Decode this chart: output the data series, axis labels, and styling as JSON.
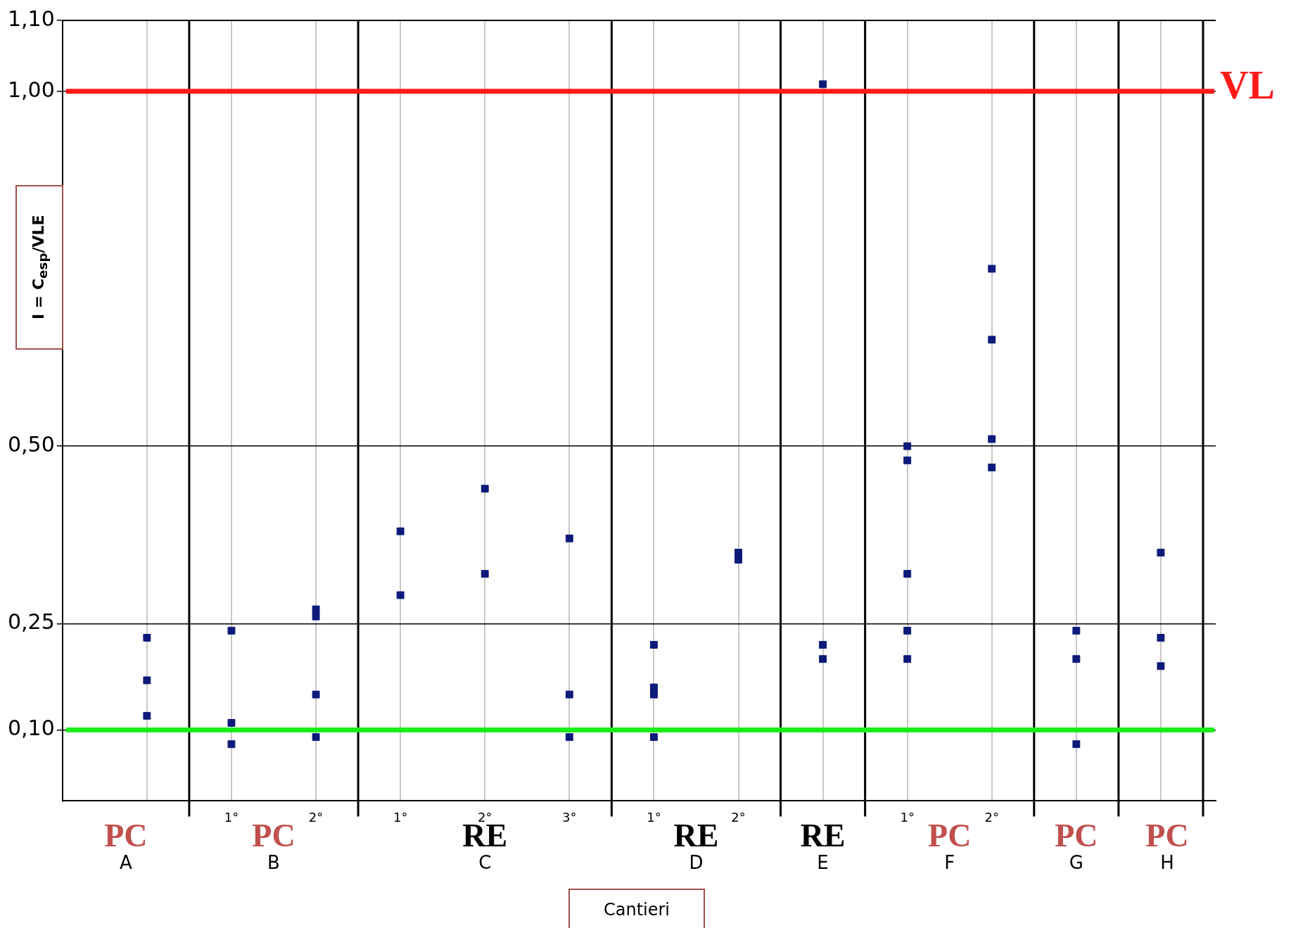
{
  "chart_data": {
    "type": "scatter",
    "xlabel": "Cantieri",
    "ylabel": "I = C$_{esp}$/VLE",
    "categories": [
      null,
      "1°",
      "2°",
      "1°",
      "2°",
      "3°",
      "1°",
      "2°",
      null,
      "1°",
      "2°",
      null,
      null
    ],
    "series": [
      {
        "color": "#0d1a7a",
        "values": [
          0.23,
          0.24,
          0.27,
          0.38,
          0.44,
          0.37,
          0.22,
          0.35,
          1.01,
          0.5,
          0.75,
          0.24,
          0.35
        ]
      },
      {
        "color": "#0d1a7a",
        "values": [
          0.17,
          0.11,
          0.26,
          0.29,
          0.32,
          0.15,
          0.16,
          0.34,
          0.22,
          0.48,
          0.65,
          0.2,
          0.23
        ]
      },
      {
        "color": "#0d1a7a",
        "values": [
          0.12,
          0.08,
          0.15,
          null,
          null,
          0.09,
          0.15,
          null,
          0.2,
          0.32,
          0.51,
          0.08,
          0.19
        ]
      },
      {
        "color": "#0d1a7a",
        "values": [
          null,
          null,
          0.09,
          null,
          null,
          null,
          0.09,
          null,
          null,
          0.24,
          0.47,
          null,
          null
        ]
      },
      {
        "color": "#0d1a7a",
        "values": [
          null,
          null,
          null,
          null,
          null,
          null,
          null,
          null,
          null,
          0.2,
          null,
          null,
          null
        ]
      }
    ],
    "marker": "square",
    "grid": true,
    "legend": false,
    "ylim": [
      0,
      1.1
    ],
    "yticks": [
      {
        "value": 0.1,
        "label": "0,10"
      },
      {
        "value": 0.25,
        "label": "0,25"
      },
      {
        "value": 0.5,
        "label": "0,50"
      },
      {
        "value": 1,
        "label": "1,00"
      },
      {
        "value": 1.1,
        "label": "1,10"
      }
    ],
    "ref_lines": [
      {
        "axis": "y",
        "value": 1,
        "label": "VL",
        "color": "#ff1a1a"
      },
      {
        "axis": "y",
        "value": 0.1,
        "color": "#1aee1a"
      }
    ],
    "annotations": [
      "PC",
      "A",
      "PC",
      "B",
      "RE",
      "C",
      "RE",
      "D",
      "RE",
      "E",
      "PC",
      "F",
      "PC",
      "G",
      "PC",
      "H"
    ]
  }
}
